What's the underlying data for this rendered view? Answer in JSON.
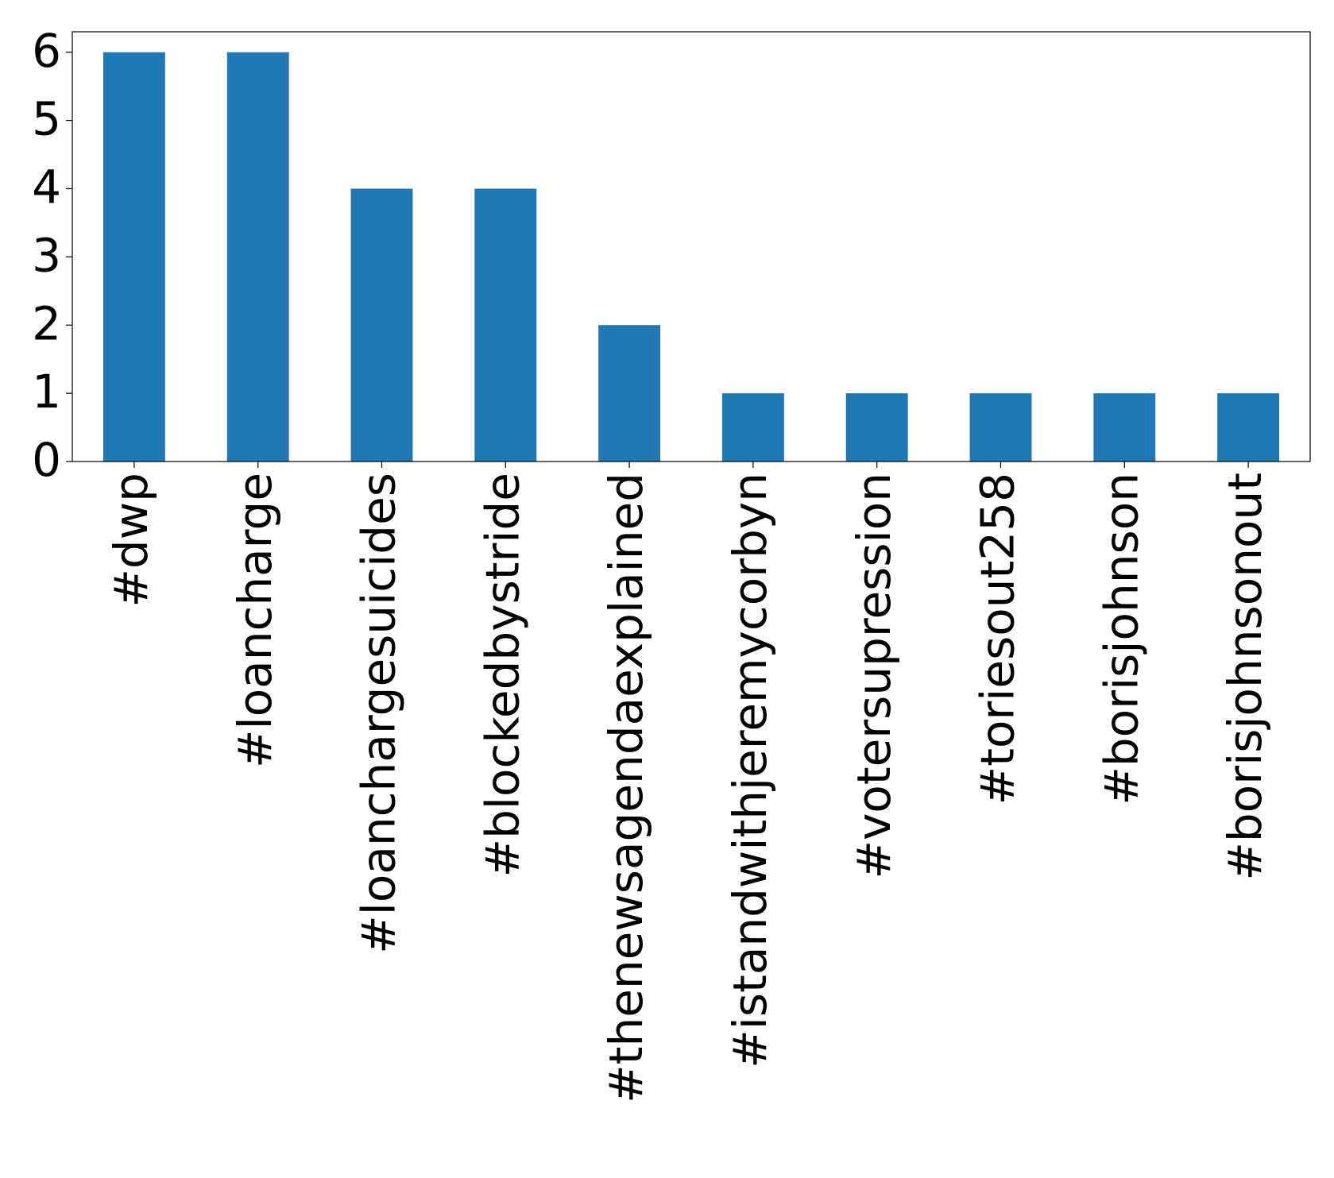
{
  "chart_data": {
    "type": "bar",
    "categories": [
      "#dwp",
      "#loancharge",
      "#loanchargesuicides",
      "#blockedbystride",
      "#thenewsagendaexplained",
      "#istandwithjeremycorbyn",
      "#votersupression",
      "#toriesout258",
      "#borisjohnson",
      "#borisjohnsonout"
    ],
    "values": [
      6,
      6,
      4,
      4,
      2,
      1,
      1,
      1,
      1,
      1
    ],
    "color": "#1f77b4",
    "ylim": [
      0,
      6.3
    ],
    "yticks": [
      0,
      1,
      2,
      3,
      4,
      5,
      6
    ],
    "grid": false
  }
}
